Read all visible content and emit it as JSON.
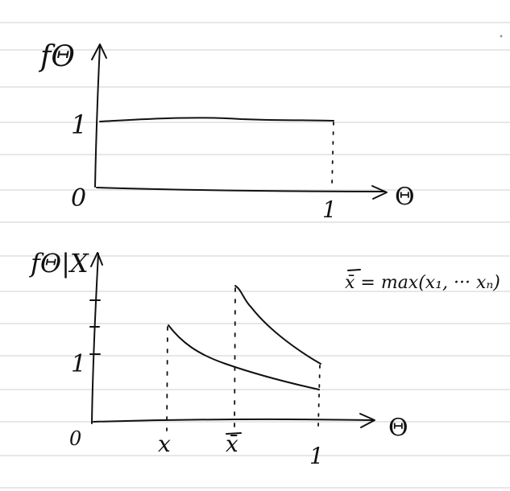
{
  "colors": {
    "paper": "#ffffff",
    "ruled_line": "#cfcfcf",
    "ink": "#111111"
  },
  "top_plot": {
    "y_label": "fΘ",
    "x_label": "Θ",
    "y_tick_1": "1",
    "origin": "0",
    "x_tick_1": "1"
  },
  "bottom_plot": {
    "y_label": "fΘ|X",
    "x_label": "Θ",
    "origin": "0",
    "y_tick_1": "1",
    "x_tick_x": "x",
    "x_tick_xbar": "x̄",
    "x_tick_1": "1",
    "annotation": "x̄ = max(x₁, ··· xₙ)"
  }
}
